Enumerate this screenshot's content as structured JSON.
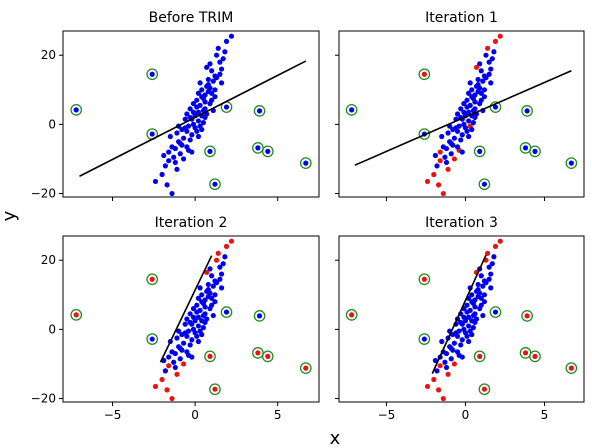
{
  "chart_data": {
    "type": "scatter",
    "xlabel": "x",
    "ylabel": "y",
    "xlim": [
      -8,
      7.5
    ],
    "ylim": [
      -21,
      27
    ],
    "xticks": [
      -5,
      0,
      5
    ],
    "yticks": [
      -20,
      0,
      20
    ],
    "tick_labels": {
      "x": [
        "−5",
        "0",
        "5"
      ],
      "y": [
        "−20",
        "0",
        "20"
      ]
    },
    "colors": {
      "kept": "#0000ee",
      "trimmed": "#ee1111",
      "outlier_ring": "#228b22",
      "fit_line": "#000000"
    },
    "points": [
      [
        -0.8,
        -1.5
      ],
      [
        0.5,
        4.0
      ],
      [
        -0.3,
        2.0
      ],
      [
        0.1,
        7.0
      ],
      [
        0.8,
        11.5
      ],
      [
        -1.0,
        -5.0
      ],
      [
        -0.1,
        3.5
      ],
      [
        0.6,
        8.5
      ],
      [
        1.2,
        14.0
      ],
      [
        -0.5,
        -2.0
      ],
      [
        0.3,
        5.5
      ],
      [
        -1.6,
        -10.5
      ],
      [
        0.2,
        1.0
      ],
      [
        1.0,
        9.0
      ],
      [
        -0.4,
        -0.5
      ],
      [
        0.7,
        3.0
      ],
      [
        1.5,
        18.0
      ],
      [
        -1.2,
        -7.0
      ],
      [
        0.0,
        -1.0
      ],
      [
        -0.6,
        1.5
      ],
      [
        0.4,
        10.0
      ],
      [
        -0.2,
        -3.0
      ],
      [
        1.1,
        12.5
      ],
      [
        0.9,
        6.0
      ],
      [
        -1.4,
        -6.5
      ],
      [
        0.3,
        -0.5
      ],
      [
        1.3,
        20.0
      ],
      [
        -0.9,
        -8.5
      ],
      [
        0.6,
        2.0
      ],
      [
        -0.3,
        4.5
      ],
      [
        0.8,
        13.0
      ],
      [
        -0.1,
        0.0
      ],
      [
        1.6,
        16.0
      ],
      [
        -1.8,
        -12.0
      ],
      [
        0.5,
        7.5
      ],
      [
        -0.7,
        -4.0
      ],
      [
        0.2,
        9.0
      ],
      [
        1.0,
        15.5
      ],
      [
        -1.1,
        -2.5
      ],
      [
        0.4,
        -1.5
      ],
      [
        1.4,
        22.0
      ],
      [
        -0.5,
        3.0
      ],
      [
        0.1,
        5.0
      ],
      [
        -1.3,
        -9.5
      ],
      [
        0.7,
        11.0
      ],
      [
        -0.2,
        1.5
      ],
      [
        1.2,
        8.0
      ],
      [
        -0.8,
        -6.0
      ],
      [
        0.9,
        17.5
      ],
      [
        0.0,
        2.5
      ],
      [
        -1.5,
        -3.5
      ],
      [
        0.6,
        6.5
      ],
      [
        1.9,
        24.0
      ],
      [
        -1.0,
        -0.5
      ],
      [
        0.3,
        12.0
      ],
      [
        -0.4,
        -7.5
      ],
      [
        1.1,
        4.0
      ],
      [
        -2.0,
        -14.5
      ],
      [
        0.5,
        0.5
      ],
      [
        1.7,
        19.0
      ],
      [
        -0.6,
        -1.0
      ],
      [
        0.8,
        9.5
      ],
      [
        -1.2,
        -11.0
      ],
      [
        0.2,
        3.5
      ],
      [
        1.3,
        13.5
      ],
      [
        -0.9,
        -5.5
      ],
      [
        0.4,
        8.0
      ],
      [
        2.2,
        25.5
      ],
      [
        -1.7,
        -17.5
      ],
      [
        -1.4,
        -20.0
      ],
      [
        -0.1,
        6.0
      ],
      [
        0.9,
        10.5
      ],
      [
        -1.6,
        -8.0
      ],
      [
        1.5,
        14.5
      ],
      [
        0.1,
        -2.0
      ],
      [
        -0.7,
        -10.0
      ],
      [
        1.0,
        7.0
      ],
      [
        -0.3,
        -4.5
      ],
      [
        1.8,
        21.0
      ],
      [
        0.6,
        4.5
      ],
      [
        -1.1,
        -13.0
      ],
      [
        -2.4,
        -16.5
      ],
      [
        0.7,
        16.5
      ],
      [
        -0.5,
        -6.5
      ],
      [
        0.2,
        -3.5
      ],
      [
        1.2,
        10.0
      ],
      [
        -1.9,
        -9.0
      ],
      [
        0.4,
        2.5
      ],
      [
        -0.2,
        -8.0
      ],
      [
        1.6,
        12.0
      ]
    ],
    "outliers": [
      [
        -7.2,
        4.2
      ],
      [
        -2.6,
        14.5
      ],
      [
        -2.6,
        -2.8
      ],
      [
        1.9,
        5.0
      ],
      [
        3.9,
        3.9
      ],
      [
        3.8,
        -6.8
      ],
      [
        4.4,
        -7.8
      ],
      [
        6.7,
        -11.2
      ],
      [
        0.9,
        -7.8
      ],
      [
        1.2,
        -17.3
      ]
    ],
    "panels": [
      {
        "title": "Before TRIM",
        "line": [
          [
            -7.0,
            -15.0
          ],
          [
            6.7,
            18.3
          ]
        ],
        "trimmed_points": [],
        "trimmed_outliers": []
      },
      {
        "title": "Iteration 1",
        "line": [
          [
            -7.0,
            -11.8
          ],
          [
            6.7,
            15.5
          ]
        ],
        "trimmed_points": [
          [
            -1.4,
            -20.0
          ],
          [
            -1.7,
            -17.5
          ],
          [
            -2.4,
            -16.5
          ],
          [
            -1.1,
            -13.0
          ],
          [
            -2.0,
            -14.5
          ],
          [
            -0.7,
            -10.0
          ],
          [
            -1.6,
            -8.0
          ],
          [
            0.7,
            16.5
          ],
          [
            1.9,
            24.0
          ],
          [
            2.2,
            25.5
          ],
          [
            -0.4,
            -7.5
          ],
          [
            0.3,
            -0.5
          ],
          [
            -1.6,
            -10.5
          ],
          [
            1.4,
            22.0
          ]
        ],
        "trimmed_outliers": [
          [
            -2.6,
            14.5
          ]
        ]
      },
      {
        "title": "Iteration 2",
        "line": [
          [
            -2.1,
            -9.5
          ],
          [
            1.0,
            21.3
          ]
        ],
        "trimmed_points": [
          [
            -1.4,
            -20.0
          ],
          [
            -1.7,
            -17.5
          ],
          [
            -2.4,
            -16.5
          ],
          [
            -1.1,
            -13.0
          ],
          [
            -2.0,
            -14.5
          ],
          [
            -1.6,
            -10.5
          ],
          [
            0.7,
            16.5
          ],
          [
            1.4,
            22.0
          ],
          [
            1.9,
            24.0
          ],
          [
            2.2,
            25.5
          ],
          [
            1.3,
            20.0
          ],
          [
            -0.7,
            -10.0
          ]
        ],
        "trimmed_outliers": [
          [
            -7.2,
            4.2
          ],
          [
            -2.6,
            14.5
          ],
          [
            3.8,
            -6.8
          ],
          [
            4.4,
            -7.8
          ],
          [
            6.7,
            -11.2
          ],
          [
            0.9,
            -7.8
          ],
          [
            1.2,
            -17.3
          ]
        ]
      },
      {
        "title": "Iteration 3",
        "line": [
          [
            -2.1,
            -12.8
          ],
          [
            1.3,
            21.5
          ]
        ],
        "trimmed_points": [
          [
            -1.4,
            -20.0
          ],
          [
            -1.7,
            -17.5
          ],
          [
            -2.4,
            -16.5
          ],
          [
            -1.1,
            -13.0
          ],
          [
            -2.0,
            -14.5
          ],
          [
            -1.6,
            -10.5
          ],
          [
            0.7,
            16.5
          ],
          [
            1.4,
            22.0
          ],
          [
            1.9,
            24.0
          ],
          [
            2.2,
            25.5
          ],
          [
            1.3,
            20.0
          ],
          [
            -0.7,
            -10.0
          ]
        ],
        "trimmed_outliers": [
          [
            -7.2,
            4.2
          ],
          [
            -2.6,
            14.5
          ],
          [
            3.9,
            3.9
          ],
          [
            3.8,
            -6.8
          ],
          [
            4.4,
            -7.8
          ],
          [
            6.7,
            -11.2
          ],
          [
            0.9,
            -7.8
          ],
          [
            1.2,
            -17.3
          ]
        ]
      }
    ]
  }
}
